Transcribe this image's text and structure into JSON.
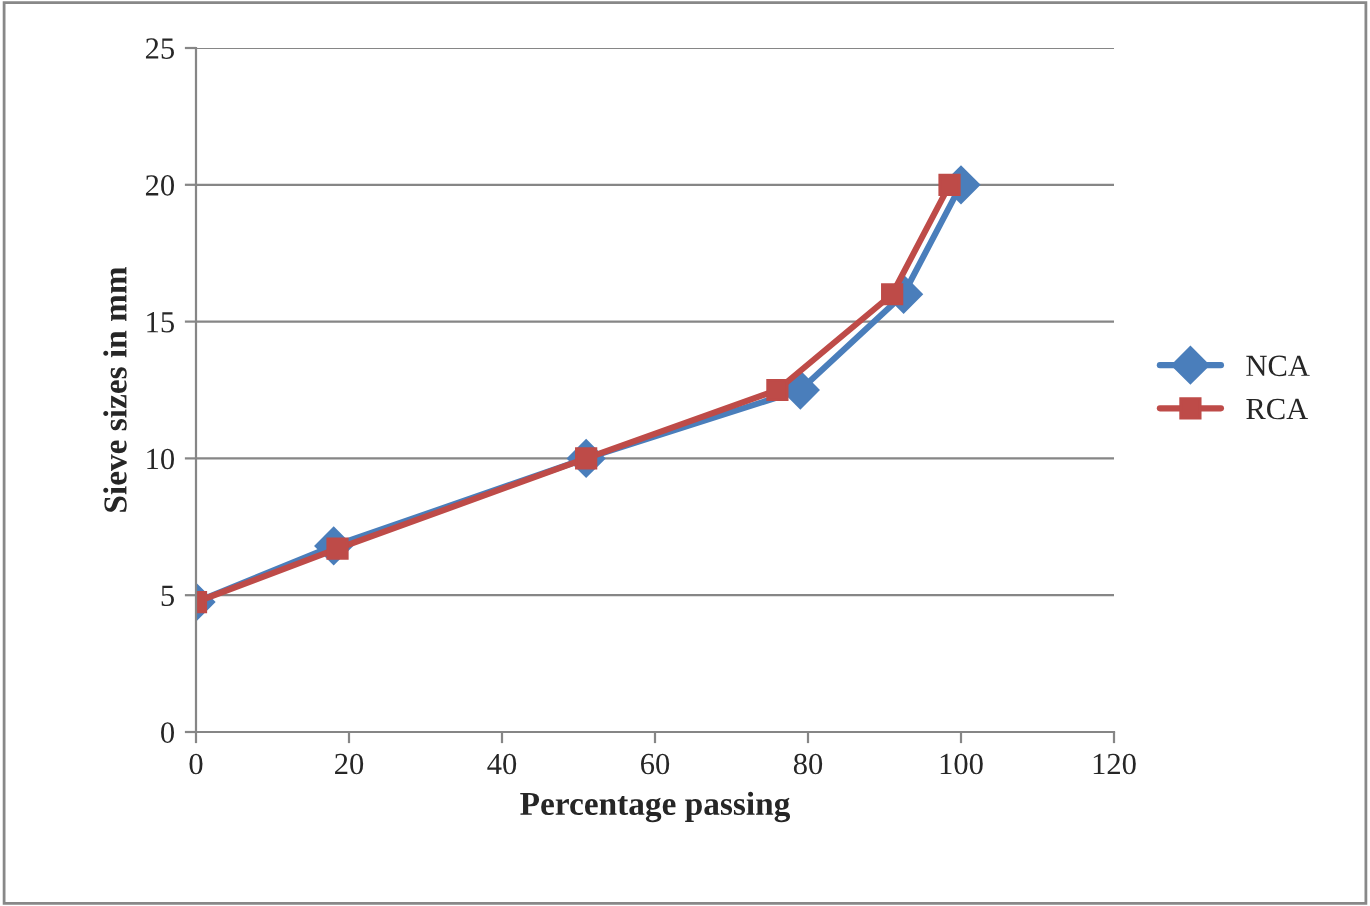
{
  "chart_data": {
    "type": "line",
    "xlabel": "Percentage passing",
    "ylabel": "Sieve sizes in mm",
    "xlim": [
      0,
      120
    ],
    "xticks": [
      0,
      20,
      40,
      60,
      80,
      100,
      120
    ],
    "ylim": [
      0,
      25
    ],
    "yticks": [
      0,
      5,
      10,
      15,
      20,
      25
    ],
    "grid": "y",
    "legend": "right",
    "series": [
      {
        "name": "NCA",
        "color": "#4a7ebb",
        "marker": "diamond",
        "x": [
          0,
          18,
          51,
          79,
          92.5,
          100
        ],
        "values": [
          4.75,
          6.8,
          10,
          12.5,
          16,
          20
        ]
      },
      {
        "name": "RCA",
        "color": "#be4b48",
        "marker": "square",
        "x": [
          0,
          18.5,
          51,
          76,
          91,
          98.5
        ],
        "values": [
          4.75,
          6.7,
          10,
          12.5,
          16,
          20
        ]
      }
    ]
  }
}
